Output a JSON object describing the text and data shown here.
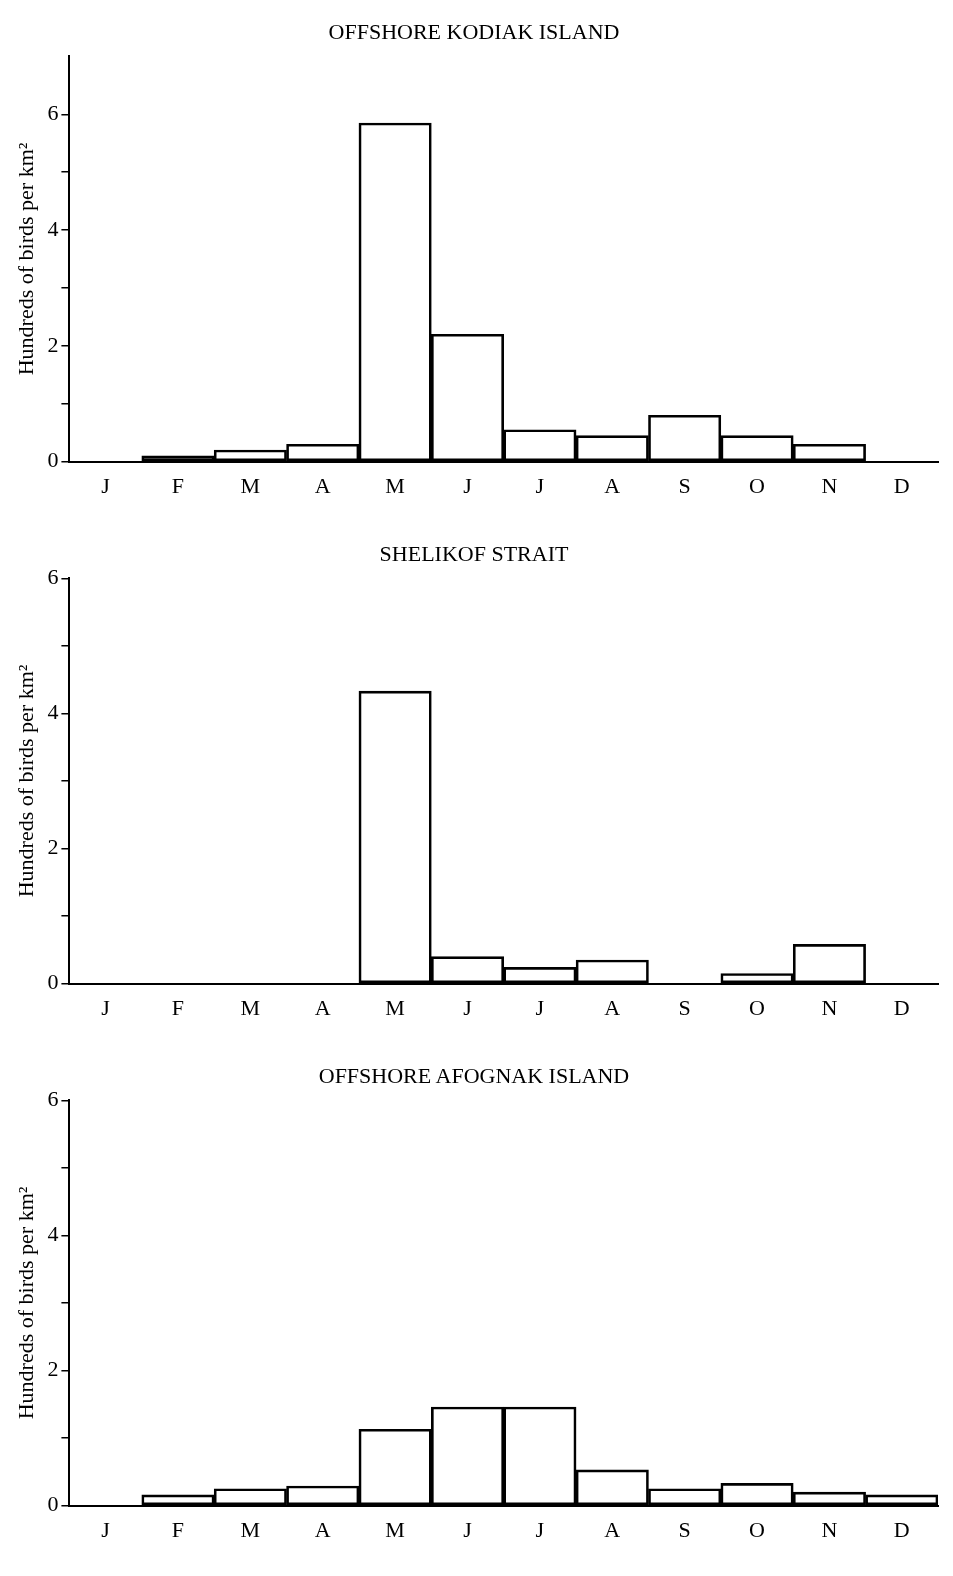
{
  "chart_data": [
    {
      "type": "bar",
      "title": "OFFSHORE KODIAK ISLAND",
      "ylabel": "Hundreds of birds per km²",
      "categories": [
        "J",
        "F",
        "M",
        "A",
        "M",
        "J",
        "J",
        "A",
        "S",
        "O",
        "N",
        "D"
      ],
      "values": [
        0,
        0.1,
        0.2,
        0.3,
        5.85,
        2.2,
        0.55,
        0.45,
        0.8,
        0.45,
        0.3,
        0
      ],
      "color": "#000000",
      "ylim": [
        0,
        7
      ],
      "yticks": [
        0,
        {
          "value": 1,
          "label": null
        },
        2,
        {
          "value": 3,
          "label": null
        },
        4,
        {
          "value": 5,
          "label": null
        },
        6
      ],
      "grid": false
    },
    {
      "type": "bar",
      "title": "SHELIKOF STRAIT",
      "ylabel": "Hundreds of birds per km²",
      "categories": [
        "J",
        "F",
        "M",
        "A",
        "M",
        "J",
        "J",
        "A",
        "S",
        "O",
        "N",
        "D"
      ],
      "values": [
        0,
        0,
        0,
        0,
        4.33,
        0.4,
        0.24,
        0.35,
        0,
        0.15,
        0.58,
        0
      ],
      "color": "#000000",
      "ylim": [
        0,
        6
      ],
      "yticks": [
        0,
        {
          "value": 1,
          "label": null
        },
        2,
        {
          "value": 3,
          "label": null
        },
        4,
        {
          "value": 5,
          "label": null
        },
        6
      ],
      "grid": false
    },
    {
      "type": "bar",
      "title": "OFFSHORE AFOGNAK ISLAND",
      "ylabel": "Hundreds of birds per km²",
      "categories": [
        "J",
        "F",
        "M",
        "A",
        "M",
        "J",
        "J",
        "A",
        "S",
        "O",
        "N",
        "D"
      ],
      "values": [
        0,
        0.16,
        0.25,
        0.29,
        1.13,
        1.46,
        1.46,
        0.53,
        0.25,
        0.33,
        0.2,
        0.16
      ],
      "color": "#000000",
      "ylim": [
        0,
        6
      ],
      "yticks": [
        0,
        {
          "value": 1,
          "label": null
        },
        2,
        {
          "value": 3,
          "label": null
        },
        4,
        {
          "value": 5,
          "label": null
        },
        6
      ],
      "grid": false
    }
  ]
}
